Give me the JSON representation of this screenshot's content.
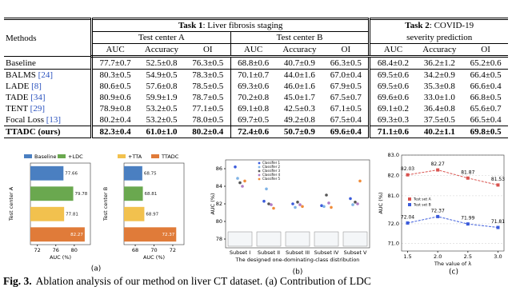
{
  "table": {
    "header": {
      "methods": "Methods",
      "task1": {
        "bold": "Task 1",
        "rest": ": Liver fibrosis staging"
      },
      "task2": {
        "bold": "Task 2",
        "rest": ": COVID-19",
        "line2": "severity prediction"
      },
      "centers": [
        "Test center A",
        "Test center B"
      ],
      "metrics": [
        "AUC",
        "Accuracy",
        "OI",
        "AUC",
        "Accuracy",
        "OI",
        "AUC",
        "Accuracy",
        "OI"
      ]
    },
    "rows": [
      {
        "method": "Baseline",
        "cells": [
          "77.7±0.7",
          "52.5±0.8",
          "76.3±0.5",
          "68.8±0.6",
          "40.7±0.9",
          "66.3±0.5",
          "68.4±0.2",
          "36.2±1.2",
          "65.2±0.6"
        ]
      },
      {
        "method": "BALMS",
        "cite": "[24]",
        "cells": [
          "80.3±0.5",
          "54.9±0.5",
          "78.3±0.5",
          "70.1±0.7",
          "44.0±1.6",
          "67.0±0.4",
          "69.5±0.6",
          "34.2±0.9",
          "66.4±0.5"
        ]
      },
      {
        "method": "LADE",
        "cite": "[8]",
        "cells": [
          "80.6±0.5",
          "57.6±0.8",
          "78.5±0.5",
          "69.3±0.6",
          "46.0±1.6",
          "67.9±0.5",
          "69.5±0.6",
          "35.3±0.8",
          "66.6±0.4"
        ]
      },
      {
        "method": "TADE",
        "cite": "[34]",
        "cells": [
          "80.9±0.6",
          "59.9±1.9",
          "78.7±0.5",
          "70.2±0.8",
          "45.0±1.7",
          "67.5±0.7",
          "69.6±0.6",
          "33.0±1.0",
          "66.8±0.5"
        ]
      },
      {
        "method": "TENT",
        "cite": "[29]",
        "cells": [
          "78.9±0.8",
          "53.2±0.5",
          "77.1±0.5",
          "69.1±0.8",
          "42.5±0.3",
          "67.1±0.5",
          "69.1±0.2",
          "36.4±0.8",
          "65.6±0.7"
        ]
      },
      {
        "method": "Focal Loss",
        "cite": "[13]",
        "cells": [
          "80.2±0.4",
          "53.2±0.5",
          "78.0±0.5",
          "69.7±0.5",
          "49.2±0.8",
          "67.5±0.4",
          "69.3±0.3",
          "37.5±0.5",
          "66.5±0.4"
        ]
      },
      {
        "method": "TTADC (ours)",
        "bold": true,
        "cells": [
          "82.3±0.4",
          "61.0±1.0",
          "80.2±0.4",
          "72.4±0.6",
          "50.7±0.9",
          "69.6±0.4",
          "71.1±0.6",
          "40.2±1.1",
          "69.8±0.5"
        ]
      }
    ]
  },
  "chart_data": [
    {
      "type": "bar",
      "orientation": "horizontal",
      "ylabel": "Test center A",
      "xlabel": "AUC (%)",
      "categories": [
        "Baseline",
        "+LDC",
        "+TTA",
        "TTADC"
      ],
      "colors": [
        "#4a7fc1",
        "#6aa84f",
        "#f2c14e",
        "#e07b39"
      ],
      "values": [
        77.66,
        79.78,
        77.81,
        82.27
      ],
      "xlim": [
        70.5,
        83.5
      ],
      "xticks": [
        72,
        76,
        80
      ]
    },
    {
      "type": "bar",
      "orientation": "horizontal",
      "ylabel": "Test center B",
      "xlabel": "AUC (%)",
      "categories": [
        "Baseline",
        "+LDC",
        "+TTA",
        "TTADC"
      ],
      "colors": [
        "#4a7fc1",
        "#6aa84f",
        "#f2c14e",
        "#e07b39"
      ],
      "values": [
        68.75,
        68.81,
        68.97,
        72.37
      ],
      "xlim": [
        66.8,
        73.2
      ],
      "xticks": [
        68,
        70,
        72
      ],
      "panel_label": "(a)"
    },
    {
      "type": "scatter",
      "ylabel": "AUC (%)",
      "xlabel": "The designed one-dominating-class distribution",
      "categories": [
        "Subset I",
        "Subset II",
        "Subset III",
        "Subset IV",
        "Subset V"
      ],
      "series": [
        {
          "name": "Classifier 1",
          "color": "#3b5bdb",
          "values": [
            86.2,
            82.3,
            82.0,
            81.8,
            82.6
          ]
        },
        {
          "name": "Classifier 2",
          "color": "#7fb3e6",
          "values": [
            84.9,
            83.7,
            81.6,
            81.7,
            81.9
          ]
        },
        {
          "name": "Classifier 3",
          "color": "#555555",
          "values": [
            84.4,
            82.0,
            82.2,
            83.0,
            82.2
          ]
        },
        {
          "name": "Classifier 4",
          "color": "#b07cc6",
          "values": [
            84.0,
            81.9,
            81.9,
            82.1,
            82.0
          ]
        },
        {
          "name": "Classifier 5",
          "color": "#f08c3a",
          "values": [
            84.6,
            81.5,
            81.7,
            81.6,
            84.6
          ]
        }
      ],
      "ylim": [
        77,
        87
      ],
      "yticks": [
        78,
        80,
        82,
        84,
        86
      ],
      "panel_label": "(b)"
    },
    {
      "type": "line",
      "ylabel": "AUC (%)",
      "xlabel": "The value of λ",
      "x": [
        1.5,
        2.0,
        2.5,
        3.0
      ],
      "xlim": [
        1.4,
        3.1
      ],
      "xticks": [
        1.5,
        {
          "value": 2,
          "label": "2.0"
        },
        2.5,
        {
          "value": 3,
          "label": "3.0"
        }
      ],
      "series": [
        {
          "name": "Test set A",
          "color": "#d9534f",
          "values": [
            82.03,
            82.27,
            81.87,
            81.53
          ]
        },
        {
          "name": "Test set B",
          "color": "#3b5bdb",
          "axis": "y2",
          "values": [
            72.04,
            72.37,
            71.99,
            71.81
          ]
        }
      ],
      "ylim": [
        80.8,
        83.0
      ],
      "yticks": [
        {
          "value": 81,
          "label": "81.0"
        },
        {
          "value": 82,
          "label": "82.0"
        },
        {
          "value": 83,
          "label": "83.0"
        }
      ],
      "y2lim": [
        70.6,
        72.9
      ],
      "y2ticks": [
        {
          "value": 71,
          "label": "71.0"
        },
        {
          "value": 72,
          "label": "72.0"
        }
      ],
      "grid": true,
      "panel_label": "(c)"
    }
  ],
  "caption": {
    "label": "Fig. 3.",
    "text": "Ablation analysis of our method on liver CT dataset. (a) Contribution of LDC"
  }
}
